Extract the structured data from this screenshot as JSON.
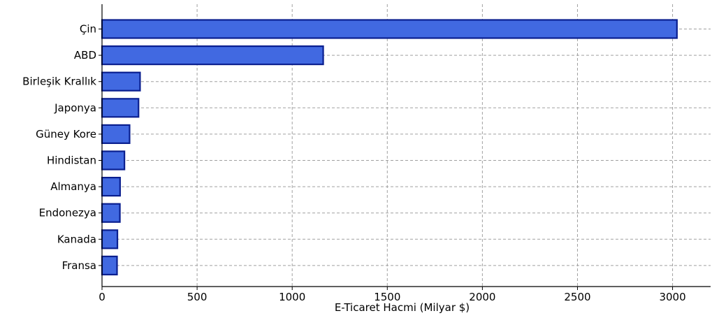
{
  "chart_data": {
    "type": "bar",
    "orientation": "horizontal",
    "title": "",
    "xlabel": "E-Ticaret Hacmi (Milyar $)",
    "ylabel": "",
    "categories": [
      "Çin",
      "ABD",
      "Birleşik Krallık",
      "Japonya",
      "Güney Kore",
      "Hindistan",
      "Almanya",
      "Endonezya",
      "Kanada",
      "Fransa"
    ],
    "values": [
      3023,
      1163,
      200,
      192,
      145,
      118,
      95,
      94,
      81,
      79
    ],
    "xlim": [
      0,
      3200
    ],
    "xticks": [
      0,
      500,
      1000,
      1500,
      2000,
      2500,
      3000
    ],
    "grid": true,
    "bar_color": "#4169e1",
    "bar_edge_color": "#0a1f8f"
  }
}
